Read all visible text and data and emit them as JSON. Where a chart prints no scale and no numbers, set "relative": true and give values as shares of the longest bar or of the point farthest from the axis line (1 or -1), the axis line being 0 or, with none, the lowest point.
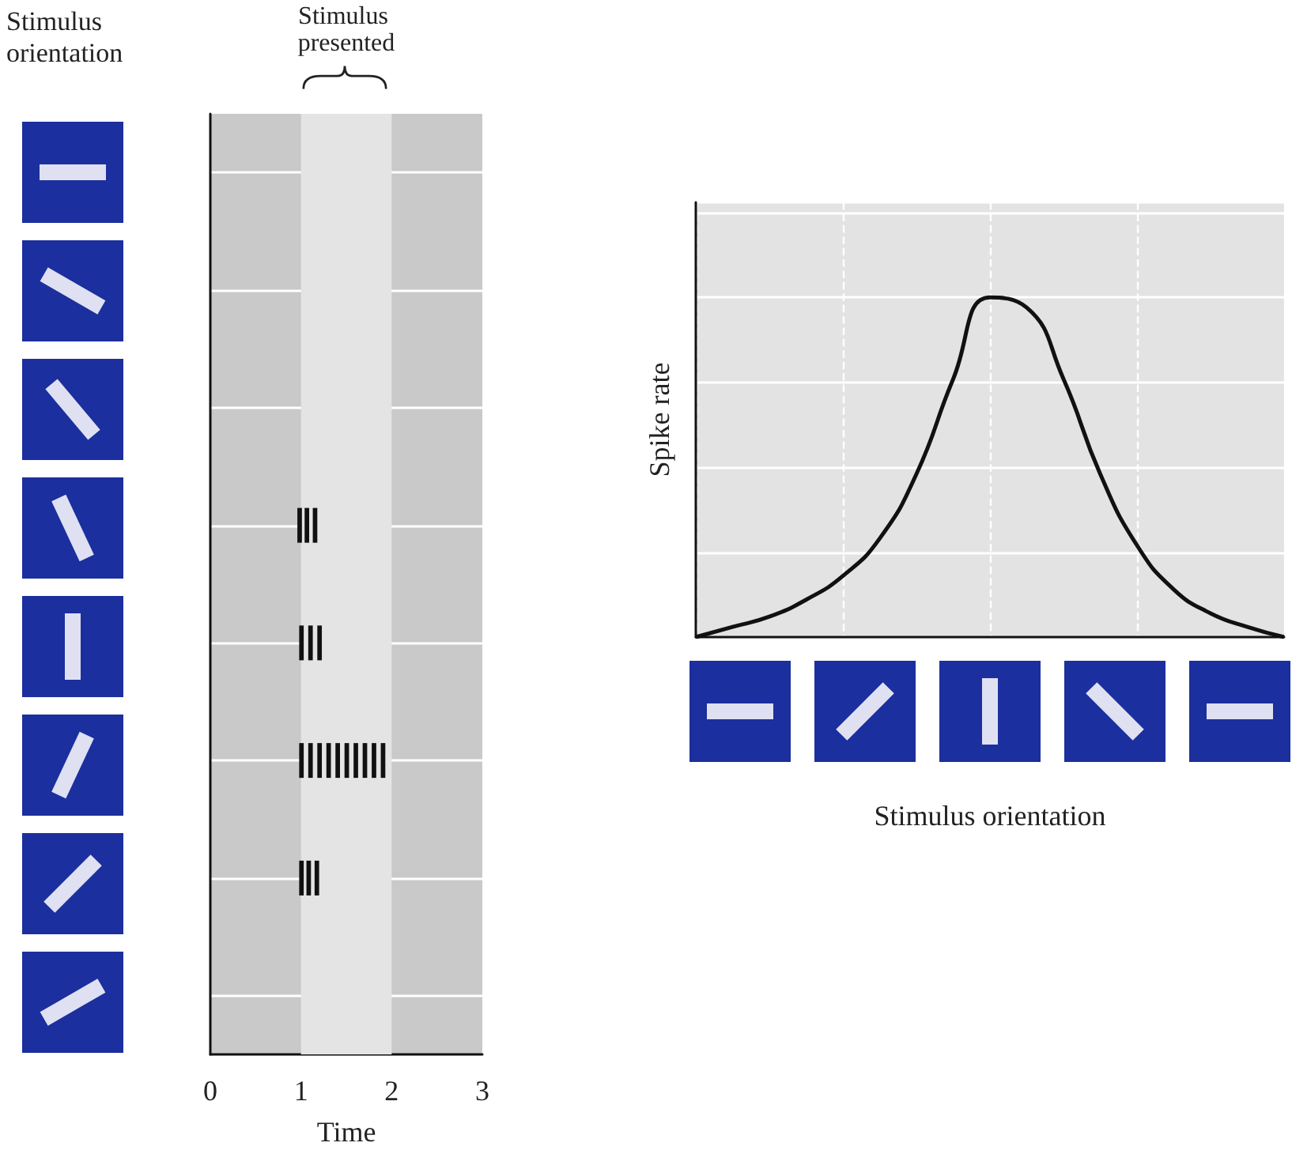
{
  "chart_data": [
    {
      "type": "bar",
      "orientation": "horizontal",
      "xlabel": "Time",
      "categories": [
        null,
        null,
        null,
        null,
        null,
        null,
        null,
        null
      ],
      "xlim": [
        0,
        3
      ],
      "xticks": [
        0,
        1,
        2,
        3
      ],
      "grid": "y",
      "annotations": [
        "Stimulus orientation"
      ],
      "bands": [
        {
          "axis": "x",
          "from": 1,
          "to": 2,
          "label": "Stimulus presented",
          "color": "#e4e4e4"
        }
      ],
      "series": [
        {
          "color": "#111111",
          "base": [
            null,
            null,
            null,
            0.96,
            0.98,
            0.98,
            0.98,
            null
          ],
          "values": [
            null,
            null,
            null,
            0.05,
            0.05,
            0.05,
            0.05,
            null
          ]
        },
        {
          "color": "#111111",
          "base": [
            null,
            null,
            null,
            1.04,
            1.08,
            1.08,
            1.06,
            null
          ],
          "values": [
            null,
            null,
            null,
            0.05,
            0.05,
            0.05,
            0.05,
            null
          ]
        },
        {
          "color": "#111111",
          "base": [
            null,
            null,
            null,
            1.13,
            1.18,
            1.18,
            1.15,
            null
          ],
          "values": [
            null,
            null,
            null,
            0.05,
            0.05,
            0.05,
            0.05,
            null
          ]
        },
        {
          "color": "#111111",
          "base": [
            null,
            null,
            null,
            null,
            null,
            1.28,
            null,
            null
          ],
          "values": [
            null,
            null,
            null,
            null,
            null,
            0.05,
            null,
            null
          ]
        },
        {
          "color": "#111111",
          "base": [
            null,
            null,
            null,
            null,
            null,
            1.38,
            null,
            null
          ],
          "values": [
            null,
            null,
            null,
            null,
            null,
            0.05,
            null,
            null
          ]
        },
        {
          "color": "#111111",
          "base": [
            null,
            null,
            null,
            null,
            null,
            1.48,
            null,
            null
          ],
          "values": [
            null,
            null,
            null,
            null,
            null,
            0.05,
            null,
            null
          ]
        },
        {
          "color": "#111111",
          "base": [
            null,
            null,
            null,
            null,
            null,
            1.58,
            null,
            null
          ],
          "values": [
            null,
            null,
            null,
            null,
            null,
            0.05,
            null,
            null
          ]
        },
        {
          "color": "#111111",
          "base": [
            null,
            null,
            null,
            null,
            null,
            1.68,
            null,
            null
          ],
          "values": [
            null,
            null,
            null,
            null,
            null,
            0.05,
            null,
            null
          ]
        },
        {
          "color": "#111111",
          "base": [
            null,
            null,
            null,
            null,
            null,
            1.78,
            null,
            null
          ],
          "values": [
            null,
            null,
            null,
            null,
            null,
            0.05,
            null,
            null
          ]
        },
        {
          "color": "#111111",
          "base": [
            null,
            null,
            null,
            null,
            null,
            1.88,
            null,
            null
          ],
          "values": [
            null,
            null,
            null,
            null,
            null,
            0.05,
            null,
            null
          ]
        }
      ]
    },
    {
      "type": "line",
      "relative": true,
      "xlabel": "Stimulus orientation",
      "ylabel": "Spike rate",
      "grid": true,
      "marker": "none",
      "categories": [
        null,
        null,
        null,
        null,
        null,
        null,
        null,
        null,
        null,
        null,
        null,
        null,
        null,
        null,
        null,
        null,
        null
      ],
      "series": [
        {
          "color": "#111111",
          "values": [
            0,
            0.03,
            0.06,
            0.11,
            0.18,
            0.29,
            0.48,
            0.76,
            1.0,
            0.97,
            0.76,
            0.48,
            0.27,
            0.14,
            0.07,
            0.03,
            0
          ]
        }
      ]
    }
  ]
}
